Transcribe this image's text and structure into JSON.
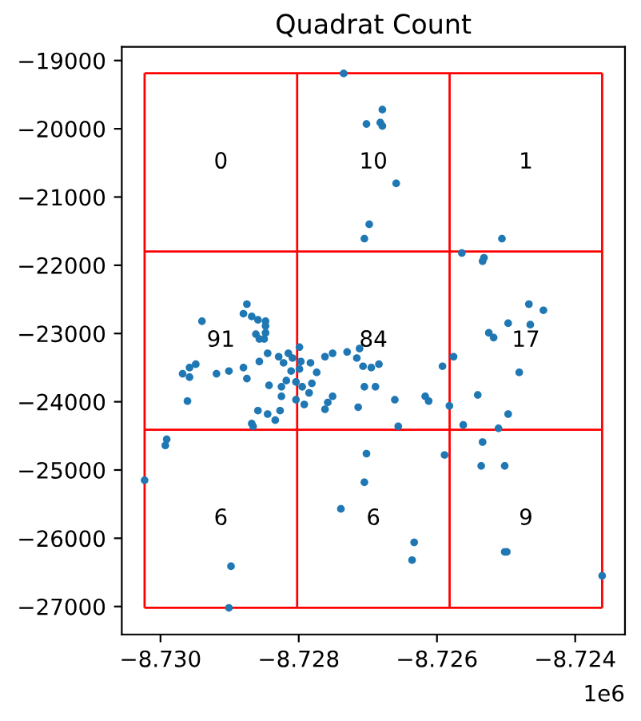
{
  "chart_data": {
    "type": "scatter",
    "title": "Quadrat Count",
    "x": [
      -8.72735,
      -8.72679,
      -8.72702,
      -8.72682,
      -8.72679,
      -8.72659,
      -8.72698,
      -8.72705,
      -8.72506,
      -8.72564,
      -8.72532,
      -8.72534,
      -8.72875,
      -8.7288,
      -8.72868,
      -8.72859,
      -8.72848,
      -8.72848,
      -8.72848,
      -8.72862,
      -8.72857,
      -8.7285,
      -8.7294,
      -8.72845,
      -8.72857,
      -8.72829,
      -8.72815,
      -8.72799,
      -8.72809,
      -8.72822,
      -8.72797,
      -8.72783,
      -8.72762,
      -8.72751,
      -8.7273,
      -8.72712,
      -8.72716,
      -8.72707,
      -8.72695,
      -8.72684,
      -8.72705,
      -8.72689,
      -8.72774,
      -8.72799,
      -8.72811,
      -8.72818,
      -8.72804,
      -8.72795,
      -8.72781,
      -8.72785,
      -8.72825,
      -8.72825,
      -8.72804,
      -8.72792,
      -8.72751,
      -8.72758,
      -8.72762,
      -8.72843,
      -8.72875,
      -8.7288,
      -8.72901,
      -8.72919,
      -8.72949,
      -8.72958,
      -8.72968,
      -8.72958,
      -8.72961,
      -8.72859,
      -8.72845,
      -8.72834,
      -8.72827,
      -8.72868,
      -8.72866,
      -8.72714,
      -8.72661,
      -8.72656,
      -8.72617,
      -8.72612,
      -8.72582,
      -8.72592,
      -8.72576,
      -8.72562,
      -8.72541,
      -8.72511,
      -8.72497,
      -8.72481,
      -8.72525,
      -8.72518,
      -8.72497,
      -8.72465,
      -8.72467,
      -8.72446,
      -8.72534,
      -8.72991,
      -8.72993,
      -8.73023,
      -8.72898,
      -8.72901,
      -8.72702,
      -8.72705,
      -8.72739,
      -8.72633,
      -8.72636,
      -8.72589,
      -8.72536,
      -8.72502,
      -8.72502,
      -8.72499,
      -8.72361
    ],
    "series": [
      {
        "color": "#1f77b4",
        "values": [
          -19190,
          -19720,
          -19930,
          -19910,
          -19960,
          -20800,
          -21400,
          -21610,
          -21610,
          -21820,
          -21890,
          -21940,
          -22570,
          -22710,
          -22750,
          -22800,
          -22820,
          -22890,
          -22990,
          -23010,
          -23080,
          -23080,
          -22820,
          -23290,
          -23410,
          -23340,
          -23290,
          -23200,
          -23360,
          -23430,
          -23410,
          -23430,
          -23340,
          -23290,
          -23270,
          -23220,
          -23360,
          -23480,
          -23500,
          -23450,
          -23780,
          -23780,
          -23570,
          -23520,
          -23550,
          -23690,
          -23710,
          -23780,
          -23730,
          -23870,
          -23780,
          -23920,
          -23970,
          -24040,
          -23920,
          -24010,
          -24110,
          -23760,
          -23660,
          -23500,
          -23550,
          -23590,
          -23450,
          -23500,
          -23590,
          -23640,
          -23990,
          -24130,
          -24180,
          -24270,
          -24130,
          -24320,
          -24360,
          -24080,
          -23970,
          -24360,
          -23920,
          -23990,
          -24060,
          -23480,
          -23340,
          -24340,
          -23900,
          -24390,
          -24180,
          -23570,
          -22990,
          -23060,
          -22850,
          -22870,
          -22570,
          -22660,
          -24590,
          -24550,
          -24640,
          -25150,
          -26410,
          -27020,
          -24760,
          -25180,
          -25570,
          -26060,
          -26320,
          -24780,
          -24940,
          -24940,
          -26200,
          -26200,
          -26550
        ]
      }
    ],
    "marker": "circle",
    "xlim": [
      -8.73056,
      -8.72328
    ],
    "ylim": [
      -27410,
      -18800
    ],
    "xticks": [
      {
        "value": -8.73,
        "label": "−8.730"
      },
      {
        "value": -8.728,
        "label": "−8.728"
      },
      {
        "value": -8.726,
        "label": "−8.726"
      },
      {
        "value": -8.724,
        "label": "−8.724"
      }
    ],
    "yticks": [
      -27000,
      -26000,
      -25000,
      -24000,
      -23000,
      -22000,
      -21000,
      -20000,
      -19000
    ],
    "ref_lines": [
      {
        "axis": "x",
        "value": -8.73023,
        "color": "#ff0000"
      },
      {
        "axis": "x",
        "value": -8.728023,
        "color": "#ff0000"
      },
      {
        "axis": "x",
        "value": -8.725817,
        "color": "#ff0000"
      },
      {
        "axis": "x",
        "value": -8.72361,
        "color": "#ff0000"
      },
      {
        "axis": "y",
        "value": -19186,
        "color": "#ff0000"
      },
      {
        "axis": "y",
        "value": -21797,
        "color": "#ff0000"
      },
      {
        "axis": "y",
        "value": -24409,
        "color": "#ff0000"
      },
      {
        "axis": "y",
        "value": -27020,
        "color": "#ff0000"
      }
    ],
    "annotations": [
      "0",
      "10",
      "1",
      "91",
      "84",
      "17",
      "6",
      "6",
      "9",
      "1e6"
    ],
    "grid": false
  }
}
